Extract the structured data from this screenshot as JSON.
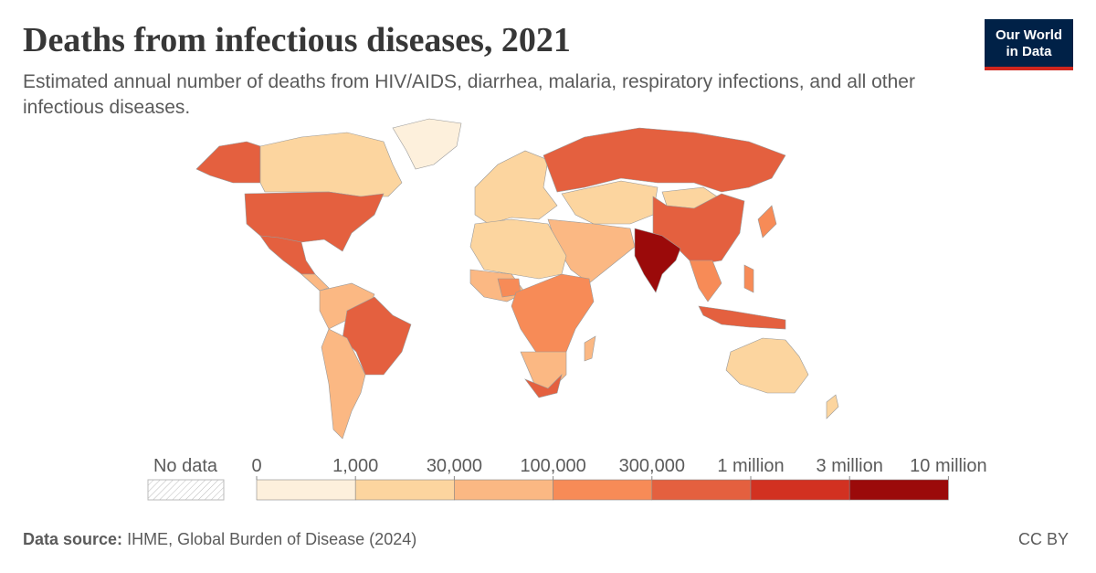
{
  "header": {
    "title": "Deaths from infectious diseases, 2021",
    "subtitle": "Estimated annual number of deaths from HIV/AIDS, diarrhea, malaria, respiratory infections, and all other infectious diseases.",
    "logo": [
      "Our World",
      "in Data"
    ]
  },
  "legend": {
    "no_data": "No data",
    "ticks": [
      0,
      {
        "value": 1000,
        "label": "1,000"
      },
      {
        "value": 30000,
        "label": "30,000"
      },
      {
        "value": 100000,
        "label": "100,000"
      },
      {
        "value": 300000,
        "label": "300,000"
      },
      {
        "value": 1000000,
        "label": "1 million"
      },
      {
        "value": 3000000,
        "label": "3 million"
      },
      {
        "value": 10000000,
        "label": "10 million"
      }
    ],
    "colors": [
      "#fdf0dc",
      "#fcd59f",
      "#fbb883",
      "#f78b57",
      "#e4603f",
      "#d23121",
      "#9b0a0a"
    ]
  },
  "footer": {
    "source_label": "Data source:",
    "source": "IHME, Global Burden of Disease (2024)",
    "license": "CC BY"
  }
}
